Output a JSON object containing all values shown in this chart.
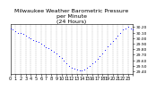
{
  "title": "Milwaukee Weather Barometric Pressure\nper Minute\n(24 Hours)",
  "title_fontsize": 4.5,
  "bg_color": "#ffffff",
  "dot_color": "#0000ff",
  "dot_size": 0.4,
  "grid_color": "#aaaaaa",
  "tick_color": "#000000",
  "xlabel_fontsize": 3.5,
  "ylabel_fontsize": 3.2,
  "ylim": [
    29.35,
    30.25
  ],
  "xlim": [
    0,
    1440
  ],
  "yticks": [
    29.4,
    29.5,
    29.6,
    29.7,
    29.8,
    29.9,
    30.0,
    30.1,
    30.2
  ],
  "xtick_positions": [
    0,
    60,
    120,
    180,
    240,
    300,
    360,
    420,
    480,
    540,
    600,
    660,
    720,
    780,
    840,
    900,
    960,
    1020,
    1080,
    1140,
    1200,
    1260,
    1320,
    1380,
    1440
  ],
  "xtick_labels": [
    "0",
    "1",
    "2",
    "3",
    "4",
    "5",
    "6",
    "7",
    "8",
    "9",
    "10",
    "11",
    "12",
    "13",
    "14",
    "15",
    "16",
    "17",
    "18",
    "19",
    "20",
    "21",
    "22",
    "23",
    ""
  ],
  "vgrid_positions": [
    60,
    120,
    180,
    240,
    300,
    360,
    420,
    480,
    540,
    600,
    660,
    720,
    780,
    840,
    900,
    960,
    1020,
    1080,
    1140,
    1200,
    1260,
    1320,
    1380
  ],
  "data_x": [
    0,
    30,
    60,
    90,
    120,
    150,
    180,
    210,
    240,
    270,
    300,
    330,
    360,
    390,
    420,
    450,
    480,
    510,
    540,
    570,
    600,
    630,
    660,
    690,
    720,
    750,
    780,
    810,
    840,
    870,
    900,
    930,
    960,
    990,
    1020,
    1050,
    1080,
    1110,
    1140,
    1170,
    1200,
    1230,
    1260,
    1290,
    1320,
    1350,
    1380,
    1410,
    1440
  ],
  "data_y": [
    30.18,
    30.15,
    30.12,
    30.1,
    30.09,
    30.08,
    30.05,
    30.02,
    29.99,
    29.97,
    29.95,
    29.93,
    29.9,
    29.87,
    29.84,
    29.82,
    29.79,
    29.76,
    29.72,
    29.68,
    29.64,
    29.6,
    29.55,
    29.5,
    29.47,
    29.45,
    29.43,
    29.42,
    29.41,
    29.43,
    29.46,
    29.5,
    29.55,
    29.58,
    29.62,
    29.67,
    29.72,
    29.78,
    29.85,
    29.9,
    29.95,
    30.0,
    30.05,
    30.1,
    30.15,
    30.18,
    30.2,
    30.18,
    30.15
  ]
}
